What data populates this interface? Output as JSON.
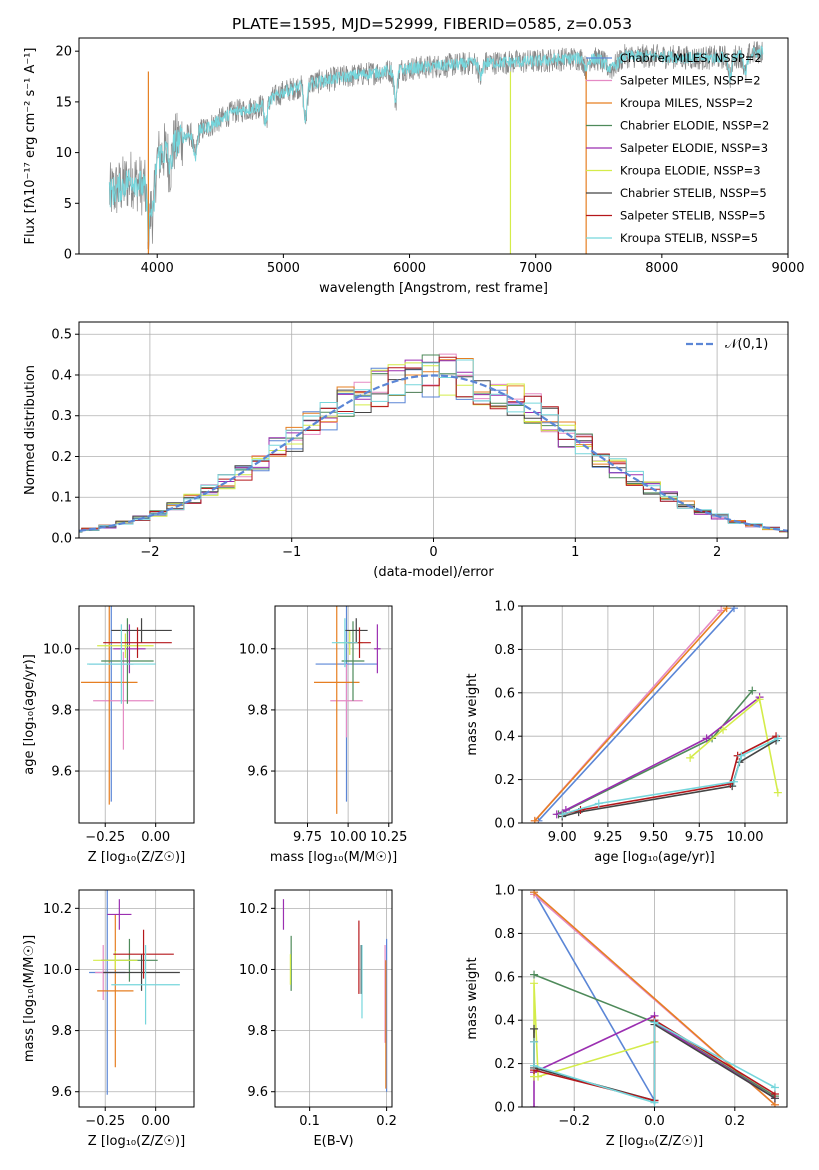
{
  "figure": {
    "title": "PLATE=1595, MJD=52999, FIBERID=0585, z=0.053"
  },
  "series": [
    {
      "name": "Chabrier MILES, N_SSP=2",
      "color": "#5b86d6"
    },
    {
      "name": "Salpeter MILES, N_SSP=2",
      "color": "#e58ac4"
    },
    {
      "name": "Kroupa MILES, N_SSP=2",
      "color": "#e67f22"
    },
    {
      "name": "Chabrier ELODIE, N_SSP=2",
      "color": "#4e8a5a"
    },
    {
      "name": "Salpeter ELODIE, N_SSP=3",
      "color": "#9b2fb1"
    },
    {
      "name": "Kroupa ELODIE, N_SSP=3",
      "color": "#d4ec4a"
    },
    {
      "name": "Chabrier STELIB, N_SSP=5",
      "color": "#444444"
    },
    {
      "name": "Salpeter STELIB, N_SSP=5",
      "color": "#b5171b"
    },
    {
      "name": "Kroupa STELIB, N_SSP=5",
      "color": "#76d6dc"
    }
  ],
  "chart_data": [
    {
      "id": "spectrum",
      "type": "line",
      "xlabel": "wavelength [Angstrom, rest frame]",
      "ylabel": "Flux [fλ10⁻¹⁷ erg cm⁻² s⁻¹ A⁻¹]",
      "xlim": [
        3380,
        9000
      ],
      "ylim": [
        0,
        21.3
      ],
      "xticks": [
        4000,
        5000,
        6000,
        7000,
        8000,
        9000
      ],
      "yticks": [
        0,
        5,
        10,
        15,
        20
      ],
      "grid": false,
      "legend_position": "right",
      "data_color": "#888888",
      "model_color": "#76d6dc",
      "continuum": [
        [
          3620,
          6.0
        ],
        [
          3700,
          6.5
        ],
        [
          3800,
          7.5
        ],
        [
          3900,
          6.5
        ],
        [
          4000,
          9.5
        ],
        [
          4100,
          10.5
        ],
        [
          4200,
          11.5
        ],
        [
          4300,
          12.0
        ],
        [
          4400,
          12.5
        ],
        [
          4600,
          14.0
        ],
        [
          4800,
          14.5
        ],
        [
          5000,
          16.0
        ],
        [
          5200,
          16.8
        ],
        [
          5500,
          17.5
        ],
        [
          5800,
          18.0
        ],
        [
          6000,
          18.3
        ],
        [
          6500,
          18.8
        ],
        [
          7000,
          19.0
        ],
        [
          7300,
          19.3
        ],
        [
          7500,
          19.2
        ],
        [
          7600,
          18.2
        ],
        [
          7700,
          19.5
        ],
        [
          8000,
          19.5
        ],
        [
          8300,
          19.3
        ],
        [
          8600,
          19.5
        ],
        [
          8800,
          20.0
        ]
      ],
      "absorption_features": [
        [
          3933,
          5.0
        ],
        [
          3968,
          4.5
        ],
        [
          4102,
          2.0
        ],
        [
          4300,
          2.5
        ],
        [
          4861,
          2.0
        ],
        [
          5175,
          3.5
        ],
        [
          5890,
          3.0
        ],
        [
          6563,
          1.5
        ],
        [
          7400,
          1.0
        ],
        [
          8542,
          2.0
        ],
        [
          8662,
          2.0
        ]
      ],
      "model_dropouts": [
        [
          3930,
          "#e67f22"
        ],
        [
          6800,
          "#d4ec4a"
        ],
        [
          7400,
          "#e67f22"
        ]
      ]
    },
    {
      "id": "residuals",
      "type": "histogram",
      "xlabel": "(data-model)/error",
      "ylabel": "Normed distribution",
      "xlim": [
        -2.5,
        2.5
      ],
      "ylim": [
        0,
        0.53
      ],
      "xticks": [
        -2,
        -1,
        0,
        1,
        2
      ],
      "yticks": [
        0.0,
        0.1,
        0.2,
        0.3,
        0.4,
        0.5
      ],
      "grid": true,
      "legend_label": "𝒩(0,1)",
      "legend_color": "#5b86d6",
      "bin_width": 0.12
    },
    {
      "id": "z-age",
      "type": "scatter",
      "xlabel": "Z [log₁₀(Z/Z☉)]",
      "ylabel": "age  [log₁₀(age/yr)]",
      "xlim": [
        -0.38,
        0.19
      ],
      "ylim": [
        9.43,
        10.14
      ],
      "xticks": [
        -0.25,
        0.0
      ],
      "xticklabels": [
        "−0.25",
        "0.00"
      ],
      "yticks": [
        9.6,
        9.8,
        10.0
      ],
      "grid": true,
      "points": [
        {
          "s": 0,
          "x": -0.22,
          "y": 9.95,
          "xerr": 0.11,
          "yerr": 0.45
        },
        {
          "s": 1,
          "x": -0.16,
          "y": 9.83,
          "xerr": 0.15,
          "yerr": 0.16
        },
        {
          "s": 2,
          "x": -0.23,
          "y": 9.89,
          "xerr": 0.14,
          "yerr": 0.4
        },
        {
          "s": 3,
          "x": -0.14,
          "y": 9.96,
          "xerr": 0.13,
          "yerr": 0.14
        },
        {
          "s": 4,
          "x": -0.13,
          "y": 10.0,
          "xerr": 0.08,
          "yerr": 0.08
        },
        {
          "s": 5,
          "x": -0.15,
          "y": 10.01,
          "xerr": 0.14,
          "yerr": 0.04
        },
        {
          "s": 6,
          "x": -0.07,
          "y": 10.06,
          "xerr": 0.15,
          "yerr": 0.04
        },
        {
          "s": 7,
          "x": -0.09,
          "y": 10.02,
          "xerr": 0.17,
          "yerr": 0.05
        },
        {
          "s": 8,
          "x": -0.17,
          "y": 9.95,
          "xerr": 0.17,
          "yerr": 0.13
        }
      ]
    },
    {
      "id": "mass-age",
      "type": "scatter",
      "xlabel": "mass [log₁₀(M/M☉)]",
      "ylabel": "",
      "xlim": [
        9.55,
        10.27
      ],
      "ylim": [
        9.43,
        10.14
      ],
      "xticks": [
        9.75,
        10.0,
        10.25
      ],
      "xticklabels": [
        "9.75",
        "10.00",
        "10.25"
      ],
      "yticks": [
        9.6,
        9.8,
        10.0
      ],
      "grid": true,
      "points": [
        {
          "s": 0,
          "x": 9.99,
          "y": 9.95,
          "xerr": 0.19,
          "yerr": 0.45
        },
        {
          "s": 1,
          "x": 9.99,
          "y": 9.83,
          "xerr": 0.1,
          "yerr": 0.12
        },
        {
          "s": 2,
          "x": 9.93,
          "y": 9.89,
          "xerr": 0.14,
          "yerr": 0.43
        },
        {
          "s": 3,
          "x": 10.03,
          "y": 9.96,
          "xerr": 0.07,
          "yerr": 0.13
        },
        {
          "s": 4,
          "x": 10.18,
          "y": 10.0,
          "xerr": 0.02,
          "yerr": 0.08
        },
        {
          "s": 5,
          "x": 10.01,
          "y": 10.02,
          "xerr": 0.08,
          "yerr": 0.04
        },
        {
          "s": 6,
          "x": 10.05,
          "y": 10.06,
          "xerr": 0.07,
          "yerr": 0.04
        },
        {
          "s": 7,
          "x": 10.07,
          "y": 10.02,
          "xerr": 0.07,
          "yerr": 0.05
        },
        {
          "s": 8,
          "x": 9.98,
          "y": 10.02,
          "xerr": 0.08,
          "yerr": 0.08
        }
      ]
    },
    {
      "id": "age-weight",
      "type": "line",
      "xlabel": "age  [log₁₀(age/yr)]",
      "ylabel": "mass weight",
      "xlim": [
        8.78,
        10.23
      ],
      "ylim": [
        0,
        1.0
      ],
      "xticks": [
        9.0,
        9.25,
        9.5,
        9.75,
        10.0
      ],
      "xticklabels": [
        "9.00",
        "9.25",
        "9.50",
        "9.75",
        "10.00"
      ],
      "yticks": [
        0.0,
        0.2,
        0.4,
        0.6,
        0.8,
        1.0
      ],
      "grid": true,
      "lines": [
        {
          "s": 0,
          "points": [
            [
              8.87,
              0.01
            ],
            [
              9.94,
              0.99
            ]
          ]
        },
        {
          "s": 1,
          "points": [
            [
              8.85,
              0.01
            ],
            [
              9.87,
              0.98
            ]
          ]
        },
        {
          "s": 2,
          "points": [
            [
              8.85,
              0.01
            ],
            [
              9.9,
              0.99
            ]
          ]
        },
        {
          "s": 3,
          "points": [
            [
              8.98,
              0.04
            ],
            [
              9.82,
              0.39
            ],
            [
              10.04,
              0.61
            ]
          ]
        },
        {
          "s": 4,
          "points": [
            [
              8.97,
              0.04
            ],
            [
              9.02,
              0.06
            ],
            [
              9.79,
              0.39
            ],
            [
              10.08,
              0.58
            ]
          ]
        },
        {
          "s": 5,
          "points": [
            [
              9.7,
              0.3
            ],
            [
              9.88,
              0.43
            ],
            [
              10.08,
              0.57
            ],
            [
              10.18,
              0.14
            ]
          ]
        },
        {
          "s": 6,
          "points": [
            [
              9.0,
              0.03
            ],
            [
              9.09,
              0.05
            ],
            [
              9.93,
              0.17
            ],
            [
              9.97,
              0.28
            ],
            [
              10.17,
              0.38
            ]
          ]
        },
        {
          "s": 7,
          "points": [
            [
              9.0,
              0.04
            ],
            [
              9.1,
              0.06
            ],
            [
              9.92,
              0.18
            ],
            [
              9.96,
              0.31
            ],
            [
              10.17,
              0.4
            ]
          ]
        },
        {
          "s": 8,
          "points": [
            [
              9.0,
              0.04
            ],
            [
              9.2,
              0.09
            ],
            [
              9.94,
              0.19
            ],
            [
              9.98,
              0.31
            ],
            [
              10.18,
              0.39
            ]
          ]
        }
      ]
    },
    {
      "id": "z-mass",
      "type": "scatter",
      "xlabel": "Z [log₁₀(Z/Z☉)]",
      "ylabel": "mass [log₁₀(M/M☉)]",
      "xlim": [
        -0.38,
        0.19
      ],
      "ylim": [
        9.55,
        10.26
      ],
      "xticks": [
        -0.25,
        0.0
      ],
      "xticklabels": [
        "−0.25",
        "0.00"
      ],
      "yticks": [
        9.6,
        9.8,
        10.0,
        10.2
      ],
      "grid": true,
      "points": [
        {
          "s": 0,
          "x": -0.24,
          "y": 9.99,
          "xerr": 0.09,
          "yerr": 0.4
        },
        {
          "s": 1,
          "x": -0.26,
          "y": 9.99,
          "xerr": 0.04,
          "yerr": 0.09
        },
        {
          "s": 2,
          "x": -0.2,
          "y": 9.93,
          "xerr": 0.09,
          "yerr": 0.25
        },
        {
          "s": 3,
          "x": -0.13,
          "y": 10.03,
          "xerr": 0.14,
          "yerr": 0.07
        },
        {
          "s": 4,
          "x": -0.18,
          "y": 10.18,
          "xerr": 0.06,
          "yerr": 0.05
        },
        {
          "s": 5,
          "x": -0.2,
          "y": 10.03,
          "xerr": 0.11,
          "yerr": 0.03
        },
        {
          "s": 6,
          "x": -0.07,
          "y": 9.99,
          "xerr": 0.19,
          "yerr": 0.06
        },
        {
          "s": 7,
          "x": -0.06,
          "y": 10.05,
          "xerr": 0.15,
          "yerr": 0.08
        },
        {
          "s": 8,
          "x": -0.05,
          "y": 9.95,
          "xerr": 0.17,
          "yerr": 0.13
        }
      ]
    },
    {
      "id": "ebv-mass",
      "type": "scatter",
      "xlabel": "E(B-V)",
      "ylabel": "",
      "xlim": [
        0.055,
        0.207
      ],
      "ylim": [
        9.55,
        10.26
      ],
      "xticks": [
        0.1,
        0.2
      ],
      "xticklabels": [
        "0.1",
        "0.2"
      ],
      "yticks": [
        9.6,
        9.8,
        10.0,
        10.2
      ],
      "grid": true,
      "points": [
        {
          "s": 0,
          "x": 0.2,
          "y": 9.85,
          "xerr": 0,
          "yerr": 0.25
        },
        {
          "s": 1,
          "x": 0.198,
          "y": 9.92,
          "xerr": 0,
          "yerr": 0.16
        },
        {
          "s": 2,
          "x": 0.199,
          "y": 9.82,
          "xerr": 0,
          "yerr": 0.21
        },
        {
          "s": 3,
          "x": 0.076,
          "y": 10.02,
          "xerr": 0,
          "yerr": 0.09
        },
        {
          "s": 4,
          "x": 0.066,
          "y": 10.18,
          "xerr": 0,
          "yerr": 0.05
        },
        {
          "s": 5,
          "x": 0.075,
          "y": 10.0,
          "xerr": 0,
          "yerr": 0.05
        },
        {
          "s": 6,
          "x": 0.167,
          "y": 10.0,
          "xerr": 0,
          "yerr": 0.08
        },
        {
          "s": 7,
          "x": 0.164,
          "y": 10.04,
          "xerr": 0,
          "yerr": 0.12
        },
        {
          "s": 8,
          "x": 0.168,
          "y": 9.96,
          "xerr": 0,
          "yerr": 0.12
        }
      ]
    },
    {
      "id": "z-weight",
      "type": "line",
      "xlabel": "Z [log₁₀(Z/Z☉)]",
      "ylabel": "mass weight",
      "xlim": [
        -0.33,
        0.33
      ],
      "ylim": [
        0,
        1.0
      ],
      "xticks": [
        -0.2,
        0.0,
        0.2
      ],
      "xticklabels": [
        "−0.2",
        "0.0",
        "0.2"
      ],
      "yticks": [
        0.0,
        0.2,
        0.4,
        0.6,
        0.8,
        1.0
      ],
      "grid": true,
      "lines": [
        {
          "s": 0,
          "points": [
            [
              -0.3,
              0.99
            ],
            [
              0.0,
              0.03
            ]
          ]
        },
        {
          "s": 1,
          "points": [
            [
              -0.3,
              0.98
            ],
            [
              0.3,
              0.01
            ]
          ]
        },
        {
          "s": 2,
          "points": [
            [
              -0.3,
              0.99
            ],
            [
              0.3,
              0.01
            ]
          ]
        },
        {
          "s": 3,
          "points": [
            [
              -0.3,
              0.61
            ],
            [
              0.0,
              0.39
            ],
            [
              0.3,
              0.05
            ]
          ]
        },
        {
          "s": 4,
          "points": [
            [
              -0.3,
              0.0
            ],
            [
              -0.3,
              0.16
            ],
            [
              0.0,
              0.42
            ],
            [
              0.0,
              0.39
            ],
            [
              0.3,
              0.04
            ]
          ]
        },
        {
          "s": 5,
          "points": [
            [
              -0.3,
              0.14
            ],
            [
              -0.3,
              0.57
            ],
            [
              -0.29,
              0.14
            ],
            [
              0.0,
              0.3
            ]
          ]
        },
        {
          "s": 6,
          "points": [
            [
              -0.3,
              0.36
            ],
            [
              -0.3,
              0.18
            ],
            [
              0.0,
              0.03
            ],
            [
              0.0,
              0.38
            ],
            [
              0.3,
              0.04
            ]
          ]
        },
        {
          "s": 7,
          "points": [
            [
              -0.3,
              0.3
            ],
            [
              -0.3,
              0.17
            ],
            [
              0.0,
              0.03
            ],
            [
              0.0,
              0.4
            ],
            [
              0.3,
              0.06
            ]
          ]
        },
        {
          "s": 8,
          "points": [
            [
              -0.3,
              0.3
            ],
            [
              -0.3,
              0.19
            ],
            [
              0.0,
              0.02
            ],
            [
              0.0,
              0.39
            ],
            [
              0.3,
              0.09
            ]
          ]
        }
      ]
    }
  ]
}
